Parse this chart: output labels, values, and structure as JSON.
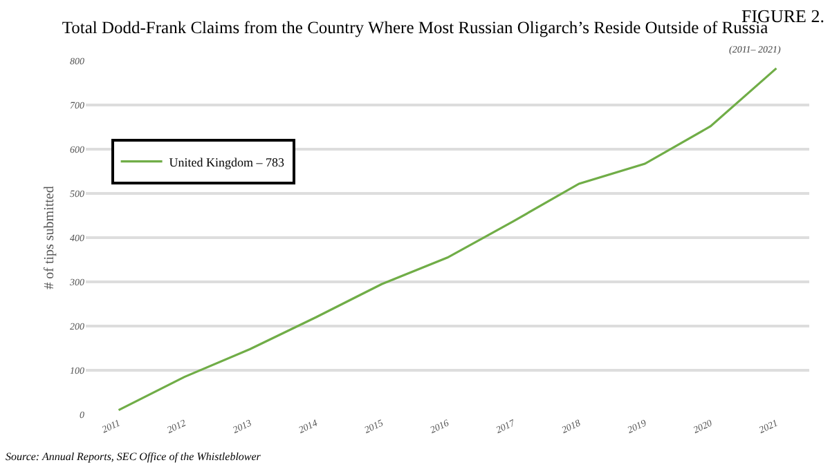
{
  "chart_data": {
    "type": "line",
    "title": "Total Dodd-Frank Claims from the Country Where Most Russian Oligarch’s Reside Outside of Russia",
    "subtitle": "(2011– 2021)",
    "ylabel": "# of tips submitted",
    "annotations": [
      "FIGURE 2.",
      "Source: Annual Reports, SEC Office of the Whistleblower"
    ],
    "categories": [
      "2011",
      "2012",
      "2013",
      "2014",
      "2015",
      "2016",
      "2017",
      "2018",
      "2019",
      "2020",
      "2021"
    ],
    "series": [
      {
        "name": "United Kingdom – 783",
        "color": "#70ad47",
        "values": [
          10,
          85,
          148,
          220,
          295,
          355,
          437,
          522,
          567,
          652,
          783
        ]
      }
    ],
    "ylim": [
      0,
      800
    ],
    "yticks": [
      0,
      100,
      200,
      300,
      400,
      500,
      600,
      700,
      800
    ],
    "grid": "y",
    "legend": "top left",
    "marker": "none",
    "line_style": "solid"
  }
}
